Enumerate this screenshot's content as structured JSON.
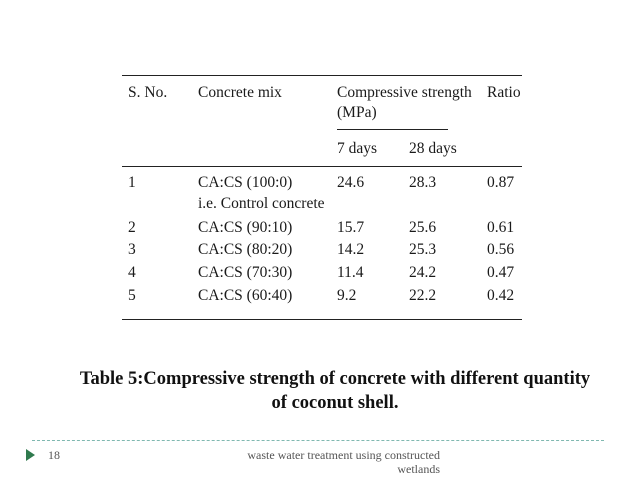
{
  "table": {
    "headers": {
      "sno": "S. No.",
      "mix": "Concrete mix",
      "strength": "Compressive strength",
      "strength_unit": "(MPa)",
      "ratio": "Ratio",
      "days7": "7 days",
      "days28": "28 days"
    },
    "rows": [
      {
        "sno": "1",
        "mix": "CA:CS (100:0)",
        "mix_note": "i.e. Control concrete",
        "d7": "24.6",
        "d28": "28.3",
        "ratio": "0.87"
      },
      {
        "sno": "2",
        "mix": "CA:CS (90:10)",
        "d7": "15.7",
        "d28": "25.6",
        "ratio": "0.61"
      },
      {
        "sno": "3",
        "mix": "CA:CS (80:20)",
        "d7": "14.2",
        "d28": "25.3",
        "ratio": "0.56"
      },
      {
        "sno": "4",
        "mix": "CA:CS (70:30)",
        "d7": "11.4",
        "d28": "24.2",
        "ratio": "0.47"
      },
      {
        "sno": "5",
        "mix": "CA:CS (60:40)",
        "d7": "9.2",
        "d28": "22.2",
        "ratio": "0.42"
      }
    ]
  },
  "caption": {
    "line1": "Table 5:Compressive strength of concrete with different quantity",
    "line2": "of coconut shell."
  },
  "footer": {
    "page": "18",
    "text_line1": "waste water treatment using constructed",
    "text_line2": "wetlands"
  },
  "colors": {
    "footer_dash": "#7fb8b0",
    "footer_arrow": "#2f7a4e"
  }
}
